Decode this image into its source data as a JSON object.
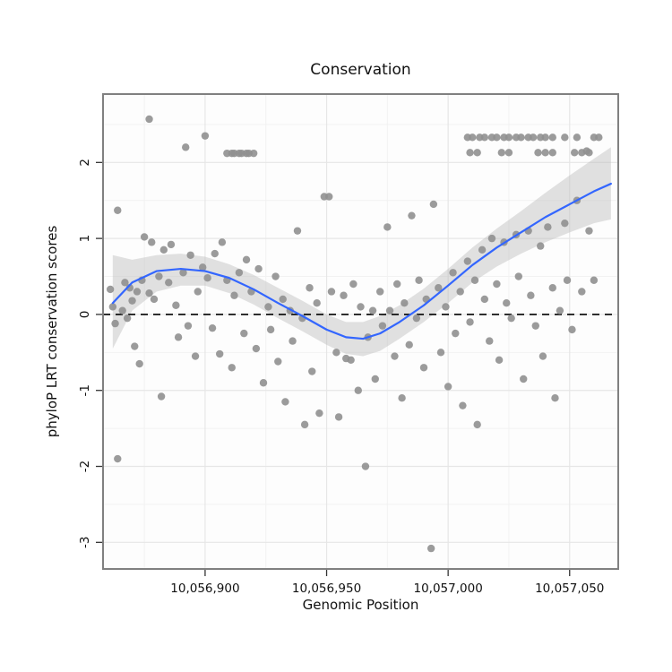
{
  "title": "Conservation",
  "chart_data": {
    "type": "scatter",
    "title": "Conservation",
    "xlabel": "Genomic Position",
    "ylabel": "phyloP LRT conservation scores",
    "xlim": [
      10056858,
      10057070
    ],
    "ylim": [
      -3.35,
      2.9
    ],
    "x_ticks": [
      {
        "value": 10056900,
        "label": "10,056,900"
      },
      {
        "value": 10056950,
        "label": "10,056,950"
      },
      {
        "value": 10057000,
        "label": "10,057,000"
      },
      {
        "value": 10057050,
        "label": "10,057,050"
      }
    ],
    "y_ticks": [
      {
        "value": -3,
        "label": "-3"
      },
      {
        "value": -2,
        "label": "-2"
      },
      {
        "value": -1,
        "label": "-1"
      },
      {
        "value": 0,
        "label": "0"
      },
      {
        "value": 1,
        "label": "1"
      },
      {
        "value": 2,
        "label": "2"
      }
    ],
    "x_minor": [
      10056875,
      10056925,
      10056975,
      10057025
    ],
    "y_minor": [
      -2.5,
      -1.5,
      -0.5,
      0.5,
      1.5,
      2.5
    ],
    "reference_line_y": 0,
    "grid": true,
    "legend": "none",
    "colors": {
      "point": "#909090",
      "smooth_line": "#3366ff",
      "band": "#bdbdbd",
      "reference": "#000000",
      "panel_border": "#808080",
      "grid_major": "#e6e6e6",
      "grid_minor": "#f2f2f2"
    },
    "points": [
      [
        10056877,
        2.57
      ],
      [
        10056892,
        2.2
      ],
      [
        10056900,
        2.35
      ],
      [
        10056909,
        2.12
      ],
      [
        10056911,
        2.12
      ],
      [
        10056912,
        2.12
      ],
      [
        10056914,
        2.12
      ],
      [
        10056915,
        2.12
      ],
      [
        10056917,
        2.12
      ],
      [
        10056918,
        2.12
      ],
      [
        10056920,
        2.12
      ],
      [
        10056861,
        0.33
      ],
      [
        10056862,
        0.1
      ],
      [
        10056863,
        -0.12
      ],
      [
        10056864,
        1.37
      ],
      [
        10056864,
        -1.9
      ],
      [
        10056866,
        0.05
      ],
      [
        10056867,
        0.42
      ],
      [
        10056868,
        -0.05
      ],
      [
        10056869,
        0.35
      ],
      [
        10056870,
        0.18
      ],
      [
        10056871,
        -0.42
      ],
      [
        10056872,
        0.3
      ],
      [
        10056873,
        -0.65
      ],
      [
        10056874,
        0.45
      ],
      [
        10056875,
        1.02
      ],
      [
        10056877,
        0.28
      ],
      [
        10056878,
        0.95
      ],
      [
        10056879,
        0.2
      ],
      [
        10056881,
        0.5
      ],
      [
        10056882,
        -1.08
      ],
      [
        10056883,
        0.85
      ],
      [
        10056885,
        0.42
      ],
      [
        10056886,
        0.92
      ],
      [
        10056888,
        0.12
      ],
      [
        10056889,
        -0.3
      ],
      [
        10056891,
        0.55
      ],
      [
        10056893,
        -0.15
      ],
      [
        10056894,
        0.78
      ],
      [
        10056896,
        -0.55
      ],
      [
        10056897,
        0.3
      ],
      [
        10056899,
        0.62
      ],
      [
        10056901,
        0.48
      ],
      [
        10056903,
        -0.18
      ],
      [
        10056904,
        0.8
      ],
      [
        10056906,
        -0.52
      ],
      [
        10056907,
        0.95
      ],
      [
        10056909,
        0.45
      ],
      [
        10056911,
        -0.7
      ],
      [
        10056912,
        0.25
      ],
      [
        10056914,
        0.55
      ],
      [
        10056916,
        -0.25
      ],
      [
        10056917,
        0.72
      ],
      [
        10056919,
        0.3
      ],
      [
        10056921,
        -0.45
      ],
      [
        10056922,
        0.6
      ],
      [
        10056924,
        -0.9
      ],
      [
        10056926,
        0.1
      ],
      [
        10056927,
        -0.2
      ],
      [
        10056929,
        0.5
      ],
      [
        10056930,
        -0.62
      ],
      [
        10056932,
        0.2
      ],
      [
        10056933,
        -1.15
      ],
      [
        10056935,
        0.05
      ],
      [
        10056936,
        -0.35
      ],
      [
        10056938,
        1.1
      ],
      [
        10056940,
        -0.05
      ],
      [
        10056941,
        -1.45
      ],
      [
        10056943,
        0.35
      ],
      [
        10056944,
        -0.75
      ],
      [
        10056946,
        0.15
      ],
      [
        10056947,
        -1.3
      ],
      [
        10056949,
        1.55
      ],
      [
        10056951,
        1.55
      ],
      [
        10056952,
        0.3
      ],
      [
        10056954,
        -0.5
      ],
      [
        10056955,
        -1.35
      ],
      [
        10056957,
        0.25
      ],
      [
        10056958,
        -0.58
      ],
      [
        10056960,
        -0.6
      ],
      [
        10056961,
        0.4
      ],
      [
        10056963,
        -1.0
      ],
      [
        10056964,
        0.1
      ],
      [
        10056966,
        -2.0
      ],
      [
        10056967,
        -0.3
      ],
      [
        10056969,
        0.05
      ],
      [
        10056970,
        -0.85
      ],
      [
        10056972,
        0.3
      ],
      [
        10056973,
        -0.15
      ],
      [
        10056975,
        1.15
      ],
      [
        10056976,
        0.05
      ],
      [
        10056978,
        -0.55
      ],
      [
        10056979,
        0.4
      ],
      [
        10056981,
        -1.1
      ],
      [
        10056982,
        0.15
      ],
      [
        10056984,
        -0.4
      ],
      [
        10056985,
        1.3
      ],
      [
        10056987,
        -0.05
      ],
      [
        10056988,
        0.45
      ],
      [
        10056990,
        -0.7
      ],
      [
        10056991,
        0.2
      ],
      [
        10056993,
        -3.08
      ],
      [
        10056994,
        1.45
      ],
      [
        10056996,
        0.35
      ],
      [
        10056997,
        -0.5
      ],
      [
        10056999,
        0.1
      ],
      [
        10057000,
        -0.95
      ],
      [
        10057002,
        0.55
      ],
      [
        10057003,
        -0.25
      ],
      [
        10057005,
        0.3
      ],
      [
        10057006,
        -1.2
      ],
      [
        10057008,
        0.7
      ],
      [
        10057009,
        -0.1
      ],
      [
        10057011,
        0.45
      ],
      [
        10057012,
        -1.45
      ],
      [
        10057014,
        0.85
      ],
      [
        10057015,
        0.2
      ],
      [
        10057017,
        -0.35
      ],
      [
        10057018,
        1.0
      ],
      [
        10057020,
        0.4
      ],
      [
        10057021,
        -0.6
      ],
      [
        10057023,
        0.95
      ],
      [
        10057024,
        0.15
      ],
      [
        10057026,
        -0.05
      ],
      [
        10057028,
        1.05
      ],
      [
        10057029,
        0.5
      ],
      [
        10057031,
        -0.85
      ],
      [
        10057033,
        1.1
      ],
      [
        10057034,
        0.25
      ],
      [
        10057036,
        -0.15
      ],
      [
        10057038,
        0.9
      ],
      [
        10057039,
        -0.55
      ],
      [
        10057041,
        1.15
      ],
      [
        10057043,
        0.35
      ],
      [
        10057044,
        -1.1
      ],
      [
        10057046,
        0.05
      ],
      [
        10057048,
        1.2
      ],
      [
        10057049,
        0.45
      ],
      [
        10057051,
        -0.2
      ],
      [
        10057053,
        1.5
      ],
      [
        10057055,
        0.3
      ],
      [
        10057057,
        2.15
      ],
      [
        10057058,
        1.1
      ],
      [
        10057060,
        0.45
      ],
      [
        10057008,
        2.33
      ],
      [
        10057010,
        2.33
      ],
      [
        10057013,
        2.33
      ],
      [
        10057015,
        2.33
      ],
      [
        10057018,
        2.33
      ],
      [
        10057020,
        2.33
      ],
      [
        10057023,
        2.33
      ],
      [
        10057025,
        2.33
      ],
      [
        10057028,
        2.33
      ],
      [
        10057030,
        2.33
      ],
      [
        10057033,
        2.33
      ],
      [
        10057035,
        2.33
      ],
      [
        10057038,
        2.33
      ],
      [
        10057040,
        2.33
      ],
      [
        10057043,
        2.33
      ],
      [
        10057048,
        2.33
      ],
      [
        10057053,
        2.33
      ],
      [
        10057060,
        2.33
      ],
      [
        10057062,
        2.33
      ],
      [
        10057009,
        2.13
      ],
      [
        10057012,
        2.13
      ],
      [
        10057022,
        2.13
      ],
      [
        10057025,
        2.13
      ],
      [
        10057037,
        2.13
      ],
      [
        10057040,
        2.13
      ],
      [
        10057043,
        2.13
      ],
      [
        10057052,
        2.13
      ],
      [
        10057055,
        2.13
      ],
      [
        10057058,
        2.13
      ]
    ],
    "smooth_line": [
      [
        10056862,
        0.15
      ],
      [
        10056870,
        0.42
      ],
      [
        10056880,
        0.57
      ],
      [
        10056890,
        0.6
      ],
      [
        10056900,
        0.57
      ],
      [
        10056910,
        0.48
      ],
      [
        10056920,
        0.33
      ],
      [
        10056930,
        0.15
      ],
      [
        10056940,
        -0.02
      ],
      [
        10056950,
        -0.2
      ],
      [
        10056958,
        -0.3
      ],
      [
        10056965,
        -0.32
      ],
      [
        10056972,
        -0.25
      ],
      [
        10056980,
        -0.1
      ],
      [
        10056990,
        0.12
      ],
      [
        10057000,
        0.38
      ],
      [
        10057010,
        0.65
      ],
      [
        10057020,
        0.88
      ],
      [
        10057030,
        1.08
      ],
      [
        10057040,
        1.28
      ],
      [
        10057050,
        1.45
      ],
      [
        10057060,
        1.62
      ],
      [
        10057067,
        1.72
      ]
    ],
    "confidence_band": [
      [
        10056862,
        -0.45,
        0.78
      ],
      [
        10056870,
        0.05,
        0.72
      ],
      [
        10056880,
        0.3,
        0.78
      ],
      [
        10056890,
        0.38,
        0.8
      ],
      [
        10056900,
        0.38,
        0.76
      ],
      [
        10056910,
        0.28,
        0.66
      ],
      [
        10056920,
        0.13,
        0.52
      ],
      [
        10056930,
        -0.05,
        0.35
      ],
      [
        10056940,
        -0.22,
        0.18
      ],
      [
        10056950,
        -0.4,
        0.0
      ],
      [
        10056958,
        -0.52,
        -0.1
      ],
      [
        10056965,
        -0.55,
        -0.1
      ],
      [
        10056972,
        -0.48,
        -0.02
      ],
      [
        10056980,
        -0.32,
        0.12
      ],
      [
        10056990,
        -0.1,
        0.34
      ],
      [
        10057000,
        0.15,
        0.6
      ],
      [
        10057010,
        0.42,
        0.88
      ],
      [
        10057020,
        0.63,
        1.13
      ],
      [
        10057030,
        0.8,
        1.36
      ],
      [
        10057040,
        0.95,
        1.6
      ],
      [
        10057050,
        1.08,
        1.83
      ],
      [
        10057060,
        1.2,
        2.05
      ],
      [
        10057067,
        1.25,
        2.2
      ]
    ]
  }
}
